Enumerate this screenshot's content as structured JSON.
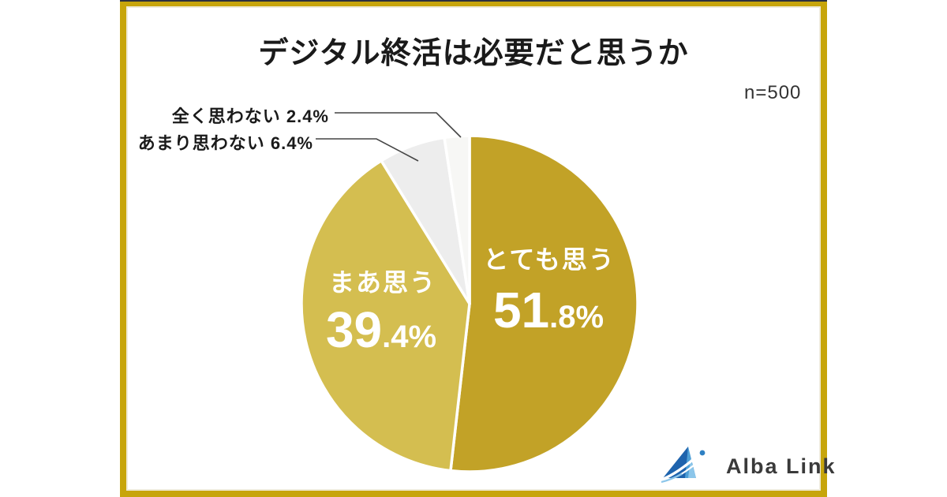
{
  "colors": {
    "frame_gold": "#C7A50B",
    "frame_top_line": "#2B3040",
    "frame_inner_line": "#EFEBD9",
    "callout_line": "#444444",
    "slice_gap": "#FFFFFF"
  },
  "chart_data": {
    "type": "pie",
    "title": "デジタル終活は必要だと思うか",
    "sample_label": "n=500",
    "start_angle_deg": -90,
    "direction": "clockwise",
    "legend_position": "none",
    "slices": [
      {
        "label": "とても思う",
        "value": 51.8,
        "color": "#C2A227",
        "label_style": "inside-white"
      },
      {
        "label": "まあ思う",
        "value": 39.4,
        "color": "#D4BE50",
        "label_style": "inside-white"
      },
      {
        "label": "あまり思わない",
        "value": 6.4,
        "color": "#EDEDED",
        "label_style": "callout"
      },
      {
        "label": "全く思わない",
        "value": 2.4,
        "color": "#F7F7F5",
        "label_style": "callout"
      }
    ]
  },
  "logo": {
    "text": "Alba Link",
    "mark": "blue-triangle-swoosh-logo"
  }
}
